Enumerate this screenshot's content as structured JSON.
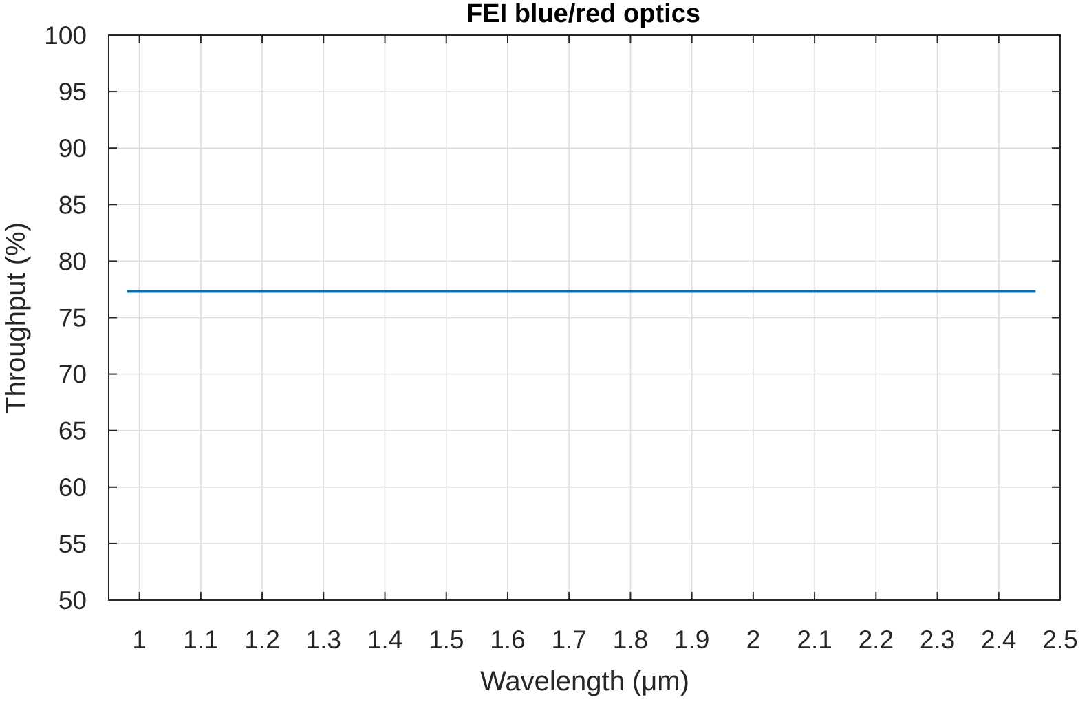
{
  "chart_data": {
    "type": "line",
    "title": "FEI blue/red optics",
    "xlabel": "Wavelength (μm)",
    "ylabel": "Throughput (%)",
    "xlim": [
      0.95,
      2.5
    ],
    "ylim": [
      50,
      100
    ],
    "xticks": [
      1,
      1.1,
      1.2,
      1.3,
      1.4,
      1.5,
      1.6,
      1.7,
      1.8,
      1.9,
      2,
      2.1,
      2.2,
      2.3,
      2.4,
      2.5
    ],
    "xtick_labels": [
      "1",
      "1.1",
      "1.2",
      "1.3",
      "1.4",
      "1.5",
      "1.6",
      "1.7",
      "1.8",
      "1.9",
      "2",
      "2.1",
      "2.2",
      "2.3",
      "2.4",
      "2.5"
    ],
    "yticks": [
      50,
      55,
      60,
      65,
      70,
      75,
      80,
      85,
      90,
      95,
      100
    ],
    "ytick_labels": [
      "50",
      "55",
      "60",
      "65",
      "70",
      "75",
      "80",
      "85",
      "90",
      "95",
      "100"
    ],
    "grid": true,
    "series": [
      {
        "color": "#0072bd",
        "x": [
          0.98,
          2.46
        ],
        "y": [
          77.3,
          77.3
        ]
      }
    ]
  }
}
